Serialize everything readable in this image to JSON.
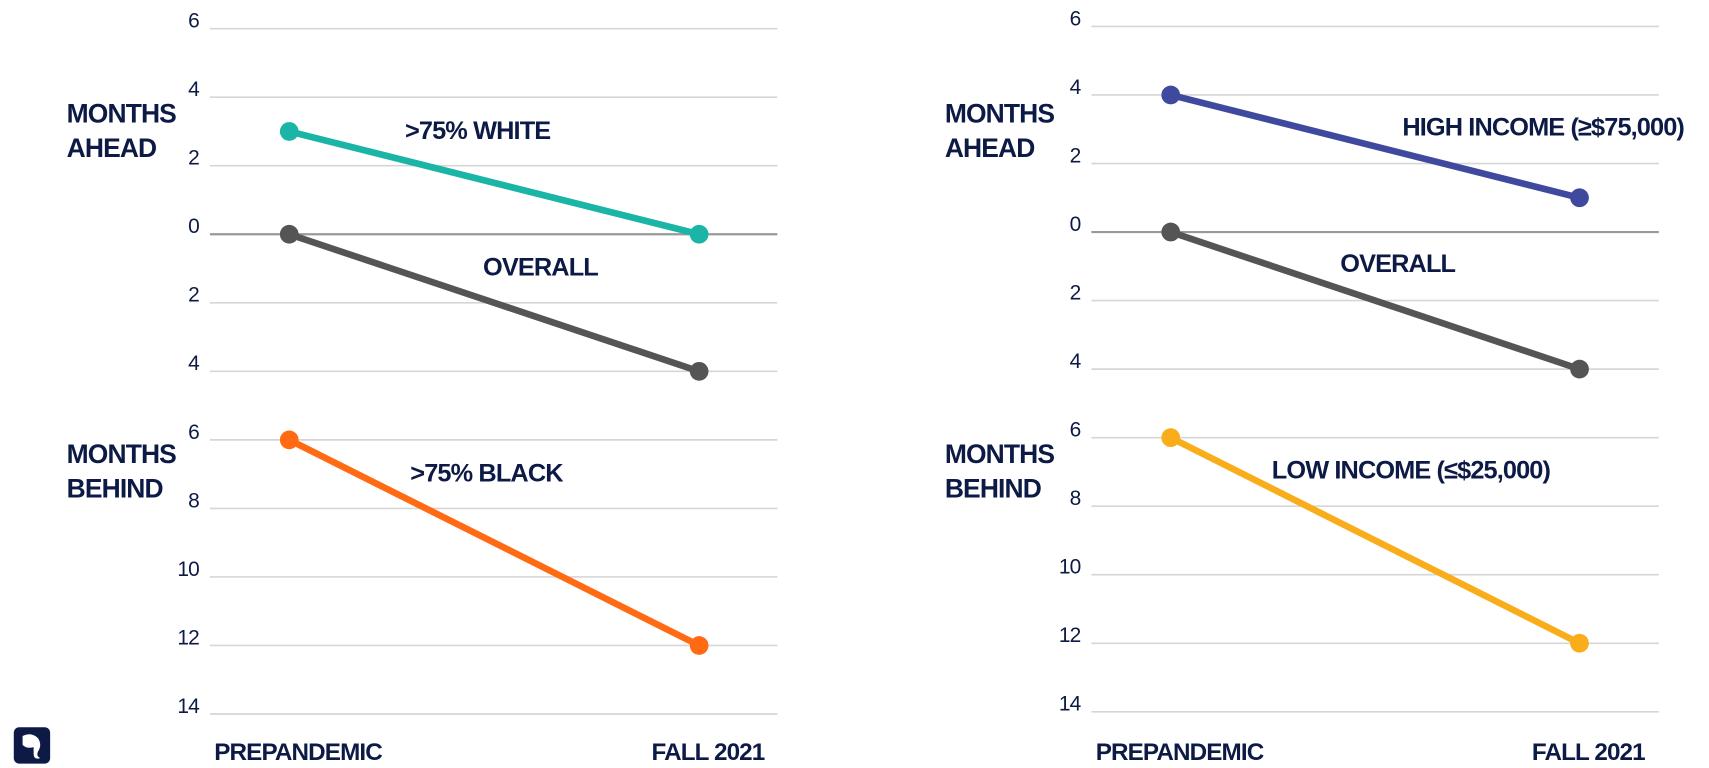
{
  "chart_data": [
    {
      "type": "line",
      "categories": [
        "PREPANDEMIC",
        "FALL 2021"
      ],
      "ylim": [
        -14,
        6
      ],
      "yticks": [
        6,
        4,
        2,
        0,
        {
          "value": -2,
          "label": "2"
        },
        {
          "value": -4,
          "label": "4"
        },
        {
          "value": -6,
          "label": "6"
        },
        {
          "value": -8,
          "label": "8"
        },
        {
          "value": -10,
          "label": "10"
        },
        {
          "value": -12,
          "label": "12"
        },
        {
          "value": -14,
          "label": "14"
        }
      ],
      "grid": true,
      "annotations": [
        {
          "lines": [
            "MONTHS",
            "AHEAD"
          ]
        },
        {
          "lines": [
            "MONTHS",
            "BEHIND"
          ]
        }
      ],
      "series": [
        {
          "name": ">75% WHITE",
          "color": "#1ab5a6",
          "values": [
            3,
            0
          ]
        },
        {
          "name": "OVERALL",
          "color": "#555555",
          "values": [
            0,
            -4
          ]
        },
        {
          "name": ">75% BLACK",
          "color": "#ff6a13",
          "values": [
            -6,
            -12
          ]
        }
      ]
    },
    {
      "type": "line",
      "categories": [
        "PREPANDEMIC",
        "FALL 2021"
      ],
      "ylim": [
        -14,
        6
      ],
      "yticks": [
        6,
        4,
        2,
        0,
        {
          "value": -2,
          "label": "2"
        },
        {
          "value": -4,
          "label": "4"
        },
        {
          "value": -6,
          "label": "6"
        },
        {
          "value": -8,
          "label": "8"
        },
        {
          "value": -10,
          "label": "10"
        },
        {
          "value": -12,
          "label": "12"
        },
        {
          "value": -14,
          "label": "14"
        }
      ],
      "grid": true,
      "annotations": [
        {
          "lines": [
            "MONTHS",
            "AHEAD"
          ]
        },
        {
          "lines": [
            "MONTHS",
            "BEHIND"
          ]
        }
      ],
      "series": [
        {
          "name": "HIGH INCOME (≥$75,000)",
          "color": "#3f4a9e",
          "values": [
            4,
            1
          ]
        },
        {
          "name": "OVERALL",
          "color": "#555555",
          "values": [
            0,
            -4
          ]
        },
        {
          "name": "LOW INCOME (≤$25,000)",
          "color": "#f9ad1b",
          "values": [
            -6,
            -12
          ]
        }
      ]
    }
  ]
}
